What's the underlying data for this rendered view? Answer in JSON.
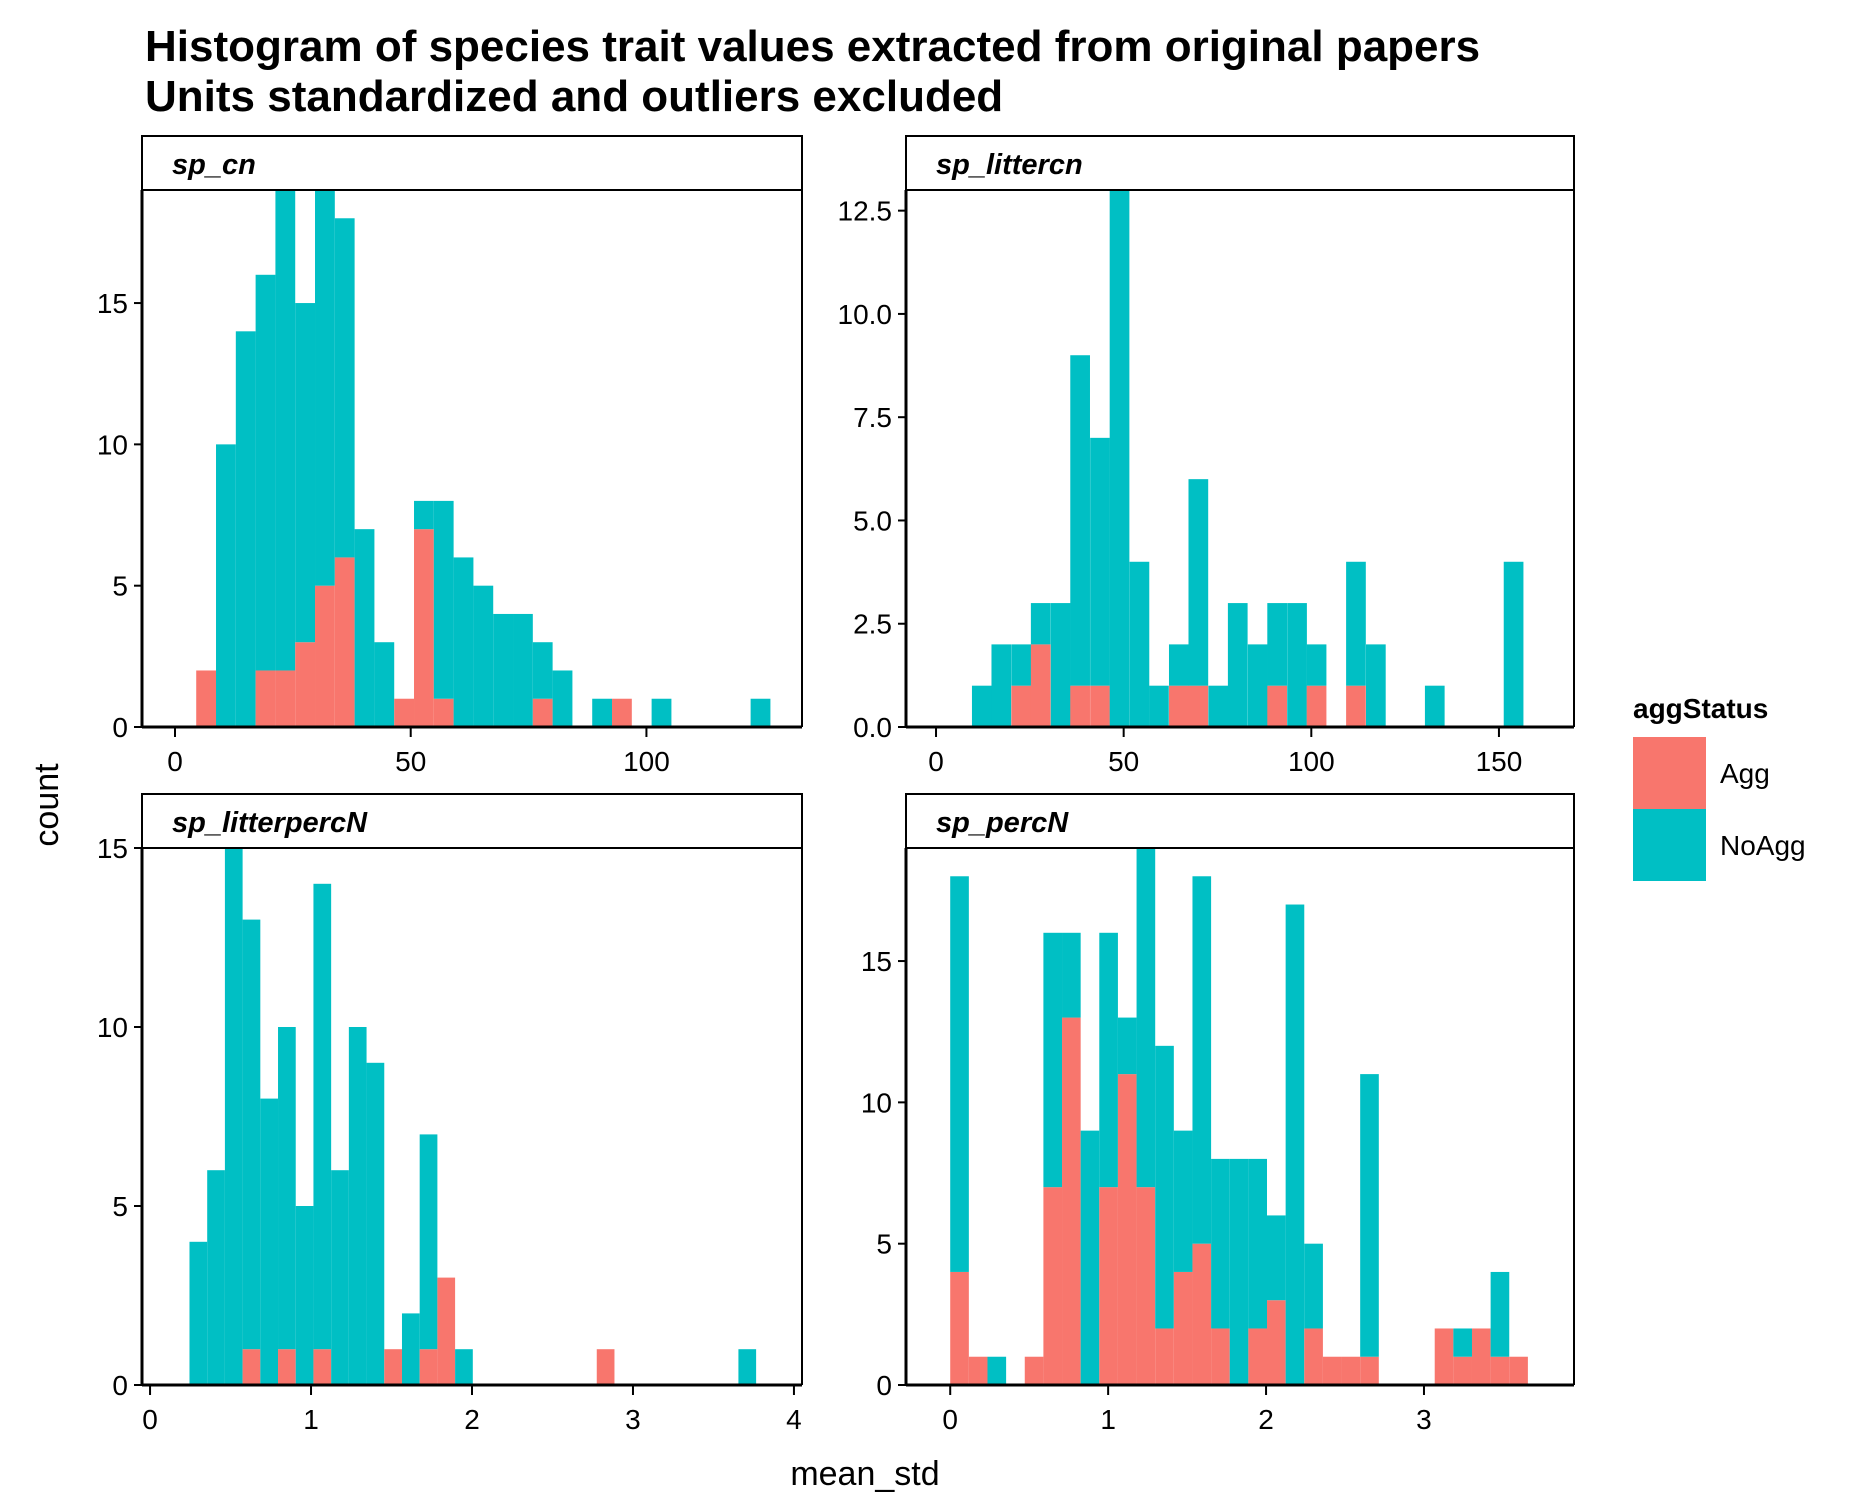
{
  "title_line1": "Histogram of species trait values extracted from original papers",
  "title_line2": "Units standardized and outliers excluded",
  "x_axis_title": "mean_std",
  "y_axis_title": "count",
  "legend": {
    "title": "aggStatus",
    "items": [
      {
        "label": "Agg",
        "color": "#F8766D"
      },
      {
        "label": "NoAgg",
        "color": "#00BFC4"
      }
    ]
  },
  "chart_data": [
    {
      "type": "bar",
      "panel": "sp_cn",
      "stacked": true,
      "bin_width": 4.2,
      "xlim": [
        -7,
        133
      ],
      "ylim": [
        0,
        19
      ],
      "x_ticks": [
        0,
        50,
        100
      ],
      "y_ticks": [
        0,
        5,
        10,
        15
      ],
      "y_tick_labels": [
        "0",
        "5",
        "10",
        "15"
      ],
      "bin_centers": [
        6.6,
        10.8,
        15,
        19.2,
        23.4,
        27.6,
        31.8,
        36,
        40.2,
        44.4,
        48.6,
        52.8,
        57,
        61.2,
        65.4,
        69.6,
        73.8,
        78,
        82.2,
        86.4,
        90.6,
        94.8,
        99,
        103.2,
        107.4,
        111.6,
        115.8,
        120,
        124.2
      ],
      "series": [
        {
          "name": "Agg",
          "values": [
            2,
            0,
            0,
            2,
            2,
            3,
            5,
            6,
            0,
            0,
            1,
            7,
            1,
            0,
            0,
            0,
            0,
            1,
            0,
            0,
            0,
            1,
            0,
            0,
            0,
            0,
            0,
            0,
            0
          ]
        },
        {
          "name": "NoAgg",
          "values": [
            0,
            10,
            14,
            14,
            17,
            12,
            14,
            12,
            7,
            3,
            0,
            1,
            7,
            6,
            5,
            4,
            4,
            2,
            2,
            0,
            1,
            0,
            0,
            1,
            0,
            0,
            0,
            0,
            1
          ]
        }
      ]
    },
    {
      "type": "bar",
      "panel": "sp_littercn",
      "stacked": true,
      "bin_width": 5.25,
      "xlim": [
        -8,
        170
      ],
      "ylim": [
        0,
        13
      ],
      "x_ticks": [
        0,
        50,
        100,
        150
      ],
      "y_ticks": [
        0,
        2.5,
        5,
        7.5,
        10,
        12.5
      ],
      "y_tick_labels": [
        "0.0",
        "2.5",
        "5.0",
        "7.5",
        "10.0",
        "12.5"
      ],
      "bin_centers": [
        12.2,
        17.4,
        22.7,
        27.9,
        33.2,
        38.4,
        43.7,
        48.9,
        54.2,
        59.4,
        64.7,
        69.9,
        75.2,
        80.4,
        85.7,
        90.9,
        96.2,
        101.4,
        106.7,
        111.9,
        117.2,
        122.4,
        127.7,
        132.9,
        138.2,
        143.4,
        148.7,
        153.9
      ],
      "series": [
        {
          "name": "Agg",
          "values": [
            0,
            0,
            1,
            2,
            0,
            1,
            1,
            0,
            0,
            0,
            1,
            1,
            0,
            0,
            0,
            1,
            0,
            1,
            0,
            1,
            0,
            0,
            0,
            0,
            0,
            0,
            0,
            0
          ]
        },
        {
          "name": "NoAgg",
          "values": [
            1,
            2,
            1,
            1,
            3,
            8,
            6,
            13,
            4,
            1,
            1,
            5,
            1,
            3,
            2,
            2,
            3,
            1,
            0,
            3,
            2,
            0,
            0,
            1,
            0,
            0,
            0,
            4
          ]
        }
      ]
    },
    {
      "type": "bar",
      "panel": "sp_litterpercN",
      "stacked": true,
      "bin_width": 0.11,
      "xlim": [
        -0.05,
        4.05
      ],
      "ylim": [
        0,
        15
      ],
      "x_ticks": [
        0,
        1,
        2,
        3,
        4
      ],
      "y_ticks": [
        0,
        5,
        10,
        15
      ],
      "y_tick_labels": [
        "0",
        "5",
        "10",
        "15"
      ],
      "bin_centers": [
        0.3,
        0.41,
        0.52,
        0.63,
        0.74,
        0.85,
        0.96,
        1.07,
        1.18,
        1.29,
        1.4,
        1.51,
        1.62,
        1.73,
        1.84,
        1.95,
        2.06,
        2.17,
        2.28,
        2.39,
        2.5,
        2.61,
        2.72,
        2.83,
        2.94,
        3.05,
        3.16,
        3.27,
        3.38,
        3.49,
        3.6,
        3.71
      ],
      "series": [
        {
          "name": "Agg",
          "values": [
            0,
            0,
            0,
            1,
            0,
            1,
            0,
            1,
            0,
            0,
            0,
            1,
            0,
            1,
            3,
            0,
            0,
            0,
            0,
            0,
            0,
            0,
            0,
            1,
            0,
            0,
            0,
            0,
            0,
            0,
            0,
            0
          ]
        },
        {
          "name": "NoAgg",
          "values": [
            4,
            6,
            15,
            12,
            8,
            9,
            5,
            13,
            6,
            10,
            9,
            0,
            2,
            6,
            0,
            1,
            0,
            0,
            0,
            0,
            0,
            0,
            0,
            0,
            0,
            0,
            0,
            0,
            0,
            0,
            0,
            1
          ]
        }
      ]
    },
    {
      "type": "bar",
      "panel": "sp_percN",
      "stacked": true,
      "bin_width": 0.118,
      "xlim": [
        -0.28,
        3.95
      ],
      "ylim": [
        0,
        19
      ],
      "x_ticks": [
        0,
        1,
        2,
        3
      ],
      "y_ticks": [
        0,
        5,
        10,
        15
      ],
      "y_tick_labels": [
        "0",
        "5",
        "10",
        "15"
      ],
      "bin_centers": [
        0.059,
        0.177,
        0.295,
        0.413,
        0.531,
        0.649,
        0.767,
        0.885,
        1.003,
        1.121,
        1.239,
        1.357,
        1.475,
        1.593,
        1.711,
        1.829,
        1.947,
        2.065,
        2.183,
        2.301,
        2.419,
        2.537,
        2.655,
        2.773,
        2.891,
        3.009,
        3.127,
        3.245,
        3.363,
        3.481,
        3.599
      ],
      "series": [
        {
          "name": "Agg",
          "values": [
            4,
            1,
            0,
            0,
            1,
            7,
            13,
            0,
            7,
            11,
            7,
            2,
            4,
            5,
            2,
            0,
            2,
            3,
            0,
            2,
            1,
            1,
            1,
            0,
            0,
            0,
            2,
            1,
            2,
            1,
            1
          ]
        },
        {
          "name": "NoAgg",
          "values": [
            14,
            0,
            1,
            0,
            0,
            9,
            3,
            9,
            9,
            2,
            12,
            10,
            5,
            13,
            6,
            8,
            6,
            3,
            17,
            3,
            0,
            0,
            10,
            0,
            0,
            0,
            0,
            1,
            0,
            3,
            0
          ]
        }
      ]
    }
  ]
}
